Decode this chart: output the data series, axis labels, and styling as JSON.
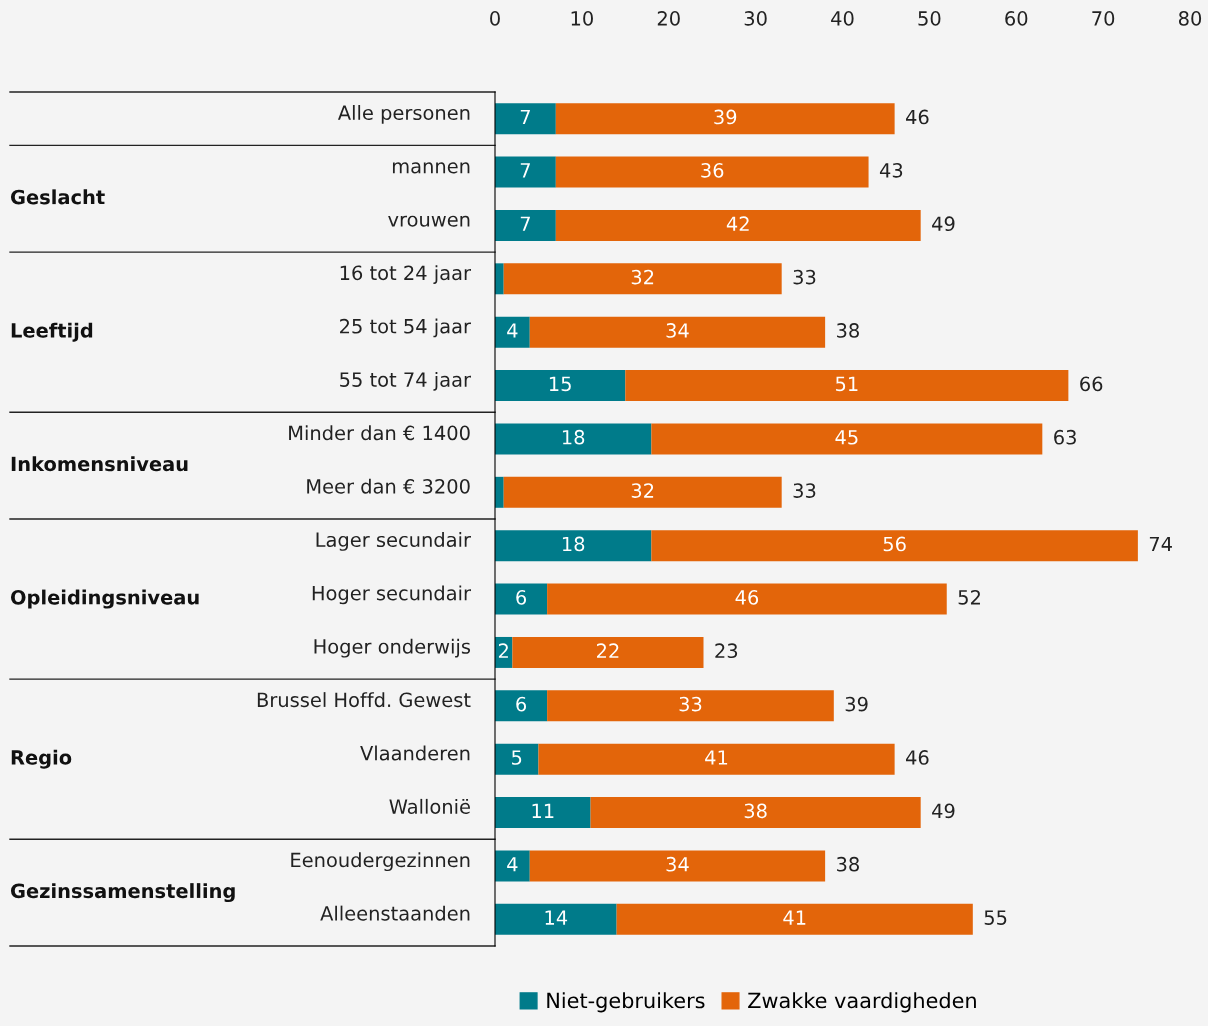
{
  "chart_data": {
    "type": "bar",
    "orientation": "horizontal",
    "stacked": true,
    "categories": [
      "Alle personen",
      "mannen",
      "vrouwen",
      "16 tot 24 jaar",
      "25 tot 54 jaar",
      "55 tot 74 jaar",
      "Minder dan € 1400",
      "Meer dan € 3200",
      "Lager secundair",
      "Hoger secundair",
      "Hoger onderwijs",
      "Brussel Hoffd. Gewest",
      "Vlaanderen",
      "Wallonië",
      "Eenoudergezinnen",
      "Alleenstaanden"
    ],
    "series": [
      {
        "name": "Niet-gebruikers",
        "color": "#007b8a",
        "values": [
          7,
          7,
          7,
          1,
          4,
          15,
          18,
          1,
          18,
          6,
          2,
          6,
          5,
          11,
          4,
          14
        ],
        "value_labels": [
          "7",
          "7",
          "7",
          null,
          "4",
          "15",
          "18",
          null,
          "18",
          "6",
          "2",
          "6",
          "5",
          "11",
          "4",
          "14"
        ]
      },
      {
        "name": "Zwakke vaardigheden",
        "color": "#e3650a",
        "values": [
          39,
          36,
          42,
          32,
          34,
          51,
          45,
          32,
          56,
          46,
          22,
          33,
          41,
          38,
          34,
          41
        ],
        "value_labels": [
          "39",
          "36",
          "42",
          "32",
          "34",
          "51",
          "45",
          "32",
          "56",
          "46",
          "22",
          "33",
          "41",
          "38",
          "34",
          "41"
        ]
      }
    ],
    "totals": [
      "46",
      "43",
      "49",
      "33",
      "38",
      "66",
      "63",
      "33",
      "74",
      "52",
      "23",
      "39",
      "46",
      "49",
      "38",
      "55"
    ],
    "xlim": [
      0,
      80
    ],
    "xticks": [
      0,
      10,
      20,
      30,
      40,
      50,
      60,
      70,
      80
    ],
    "grid": false,
    "legend": "bottom",
    "annotations": [
      "Geslacht",
      "Leeftijd",
      "Inkomensniveau",
      "Opleidingsniveau",
      "Regio",
      "Gezinssamenstelling"
    ]
  }
}
